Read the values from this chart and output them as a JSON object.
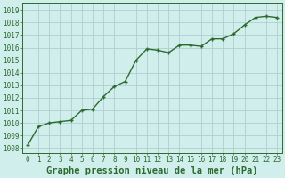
{
  "x": [
    0,
    1,
    2,
    3,
    4,
    5,
    6,
    7,
    8,
    9,
    10,
    11,
    12,
    13,
    14,
    15,
    16,
    17,
    18,
    19,
    20,
    21,
    22,
    23
  ],
  "y": [
    1008.2,
    1009.7,
    1010.0,
    1010.1,
    1010.2,
    1011.0,
    1011.1,
    1012.1,
    1012.9,
    1013.3,
    1015.0,
    1015.9,
    1015.8,
    1015.6,
    1016.2,
    1016.2,
    1016.1,
    1016.7,
    1016.7,
    1017.1,
    1017.8,
    1018.4,
    1018.5,
    1018.4
  ],
  "line_color": "#2d6a2d",
  "marker": "P",
  "marker_size": 3.5,
  "line_width": 1.0,
  "bg_color": "#d0eeec",
  "grid_color": "#b0cece",
  "xlabel": "Graphe pression niveau de la mer (hPa)",
  "xlabel_fontsize": 7.5,
  "yticks": [
    1008,
    1009,
    1010,
    1011,
    1012,
    1013,
    1014,
    1015,
    1016,
    1017,
    1018,
    1019
  ],
  "ylim": [
    1007.6,
    1019.6
  ],
  "xlim": [
    -0.5,
    23.5
  ],
  "xticks": [
    0,
    1,
    2,
    3,
    4,
    5,
    6,
    7,
    8,
    9,
    10,
    11,
    12,
    13,
    14,
    15,
    16,
    17,
    18,
    19,
    20,
    21,
    22,
    23
  ],
  "tick_fontsize": 5.5,
  "tick_color": "#2d6a2d",
  "axis_color": "#2d6a2d",
  "label_color": "#2d6a2d"
}
